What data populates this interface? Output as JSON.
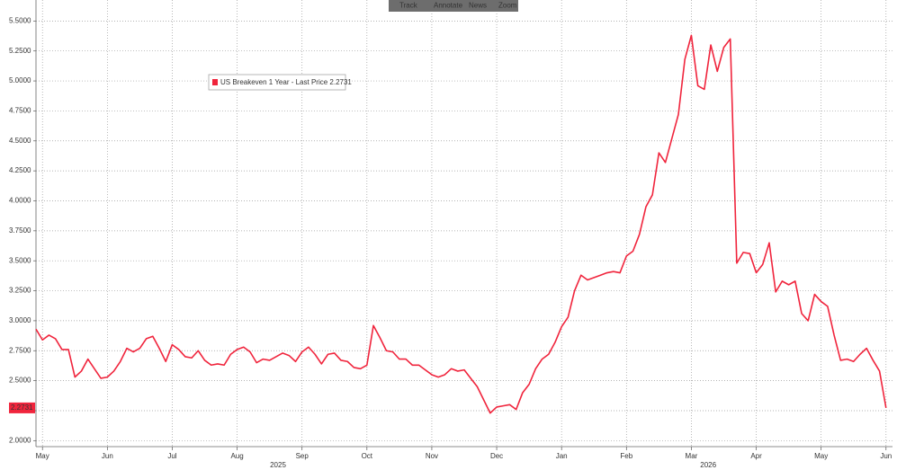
{
  "chart_data": {
    "type": "line",
    "toolbar": [
      "Track",
      "Annotate",
      "News",
      "Zoom"
    ],
    "x": [
      -0.1,
      0,
      0.1,
      0.2,
      0.3,
      0.4,
      0.5,
      0.6,
      0.7,
      0.8,
      0.9,
      1,
      1.1,
      1.2,
      1.3,
      1.4,
      1.5,
      1.6,
      1.7,
      1.8,
      1.9,
      2,
      2.1,
      2.2,
      2.3,
      2.4,
      2.5,
      2.6,
      2.7,
      2.8,
      2.9,
      3,
      3.1,
      3.2,
      3.3,
      3.4,
      3.5,
      3.6,
      3.7,
      3.8,
      3.9,
      4,
      4.1,
      4.2,
      4.3,
      4.4,
      4.5,
      4.6,
      4.7,
      4.8,
      4.9,
      5,
      5.1,
      5.2,
      5.3,
      5.4,
      5.5,
      5.6,
      5.7,
      5.8,
      5.9,
      6,
      6.1,
      6.2,
      6.3,
      6.4,
      6.5,
      6.6,
      6.7,
      6.8,
      6.9,
      7,
      7.1,
      7.2,
      7.3,
      7.4,
      7.5,
      7.6,
      7.7,
      7.8,
      7.9,
      8,
      8.1,
      8.2,
      8.3,
      8.4,
      8.5,
      8.6,
      8.7,
      8.8,
      8.9,
      9,
      9.1,
      9.2,
      9.3,
      9.4,
      9.5,
      9.6,
      9.7,
      9.8,
      9.9,
      10,
      10.1,
      10.2,
      10.3,
      10.4,
      10.5,
      10.6,
      10.7,
      10.8,
      10.9,
      11,
      11.1,
      11.2,
      11.3,
      11.4,
      11.5,
      11.6,
      11.7,
      11.8,
      11.9,
      12,
      12.1,
      12.2,
      12.3,
      12.4,
      12.5,
      12.6,
      12.7,
      12.8,
      12.9,
      13
    ],
    "series": [
      {
        "name": "US Breakeven 1 Year - Last Price 2.2731",
        "color": "#f0243c",
        "values": [
          2.93,
          2.84,
          2.88,
          2.85,
          2.76,
          2.76,
          2.53,
          2.58,
          2.68,
          2.6,
          2.52,
          2.53,
          2.58,
          2.66,
          2.77,
          2.74,
          2.77,
          2.85,
          2.87,
          2.77,
          2.66,
          2.8,
          2.76,
          2.7,
          2.69,
          2.75,
          2.67,
          2.63,
          2.64,
          2.63,
          2.72,
          2.76,
          2.78,
          2.74,
          2.65,
          2.68,
          2.67,
          2.7,
          2.73,
          2.71,
          2.66,
          2.74,
          2.78,
          2.72,
          2.64,
          2.72,
          2.73,
          2.67,
          2.66,
          2.61,
          2.6,
          2.63,
          2.96,
          2.86,
          2.75,
          2.74,
          2.68,
          2.68,
          2.63,
          2.63,
          2.59,
          2.55,
          2.53,
          2.55,
          2.6,
          2.58,
          2.59,
          2.52,
          2.45,
          2.34,
          2.23,
          2.28,
          2.29,
          2.3,
          2.26,
          2.4,
          2.47,
          2.6,
          2.68,
          2.72,
          2.82,
          2.95,
          3.03,
          3.25,
          3.38,
          3.34,
          3.36,
          3.38,
          3.4,
          3.41,
          3.4,
          3.54,
          3.58,
          3.72,
          3.95,
          4.05,
          4.4,
          4.32,
          4.52,
          4.72,
          5.18,
          5.38,
          4.96,
          4.93,
          5.3,
          5.08,
          5.28,
          5.35,
          3.48,
          3.57,
          3.56,
          3.4,
          3.47,
          3.65,
          3.24,
          3.33,
          3.3,
          3.33,
          3.06,
          3,
          3.22,
          3.16,
          3.12,
          2.88,
          2.67,
          2.68,
          2.66,
          2.72,
          2.77,
          2.67,
          2.58,
          2.2731
        ]
      }
    ],
    "last_price": 2.2731,
    "xlim": [
      -0.1,
      13.1
    ],
    "xticks": [
      {
        "value": 0,
        "label": "May"
      },
      {
        "value": 1,
        "label": "Jun"
      },
      {
        "value": 2,
        "label": "Jul"
      },
      {
        "value": 3,
        "label": "Aug"
      },
      {
        "value": 4,
        "label": "Sep"
      },
      {
        "value": 5,
        "label": "Oct"
      },
      {
        "value": 6,
        "label": "Nov"
      },
      {
        "value": 7,
        "label": "Dec"
      },
      {
        "value": 8,
        "label": "Jan"
      },
      {
        "value": 9,
        "label": "Feb"
      },
      {
        "value": 10,
        "label": "Mar"
      },
      {
        "value": 11,
        "label": "Apr"
      },
      {
        "value": 12,
        "label": "May"
      },
      {
        "value": 13,
        "label": "Jun"
      }
    ],
    "year_labels": [
      {
        "value": 3.63,
        "label": "2025"
      },
      {
        "value": 10.26,
        "label": "2026"
      }
    ],
    "ylim": [
      1.95,
      5.675
    ],
    "yticks": [
      {
        "value": 2,
        "label": "2.0000"
      },
      {
        "value": 2.25,
        "label": "2.2500"
      },
      {
        "value": 2.5,
        "label": "2.5000"
      },
      {
        "value": 2.75,
        "label": "2.7500"
      },
      {
        "value": 3,
        "label": "3.0000"
      },
      {
        "value": 3.25,
        "label": "3.2500"
      },
      {
        "value": 3.5,
        "label": "3.5000"
      },
      {
        "value": 3.75,
        "label": "3.7500"
      },
      {
        "value": 4,
        "label": "4.0000"
      },
      {
        "value": 4.25,
        "label": "4.2500"
      },
      {
        "value": 4.5,
        "label": "4.5000"
      },
      {
        "value": 4.75,
        "label": "4.7500"
      },
      {
        "value": 5,
        "label": "5.0000"
      },
      {
        "value": 5.25,
        "label": "5.2500"
      },
      {
        "value": 5.5,
        "label": "5.5000"
      }
    ],
    "grid": true
  }
}
